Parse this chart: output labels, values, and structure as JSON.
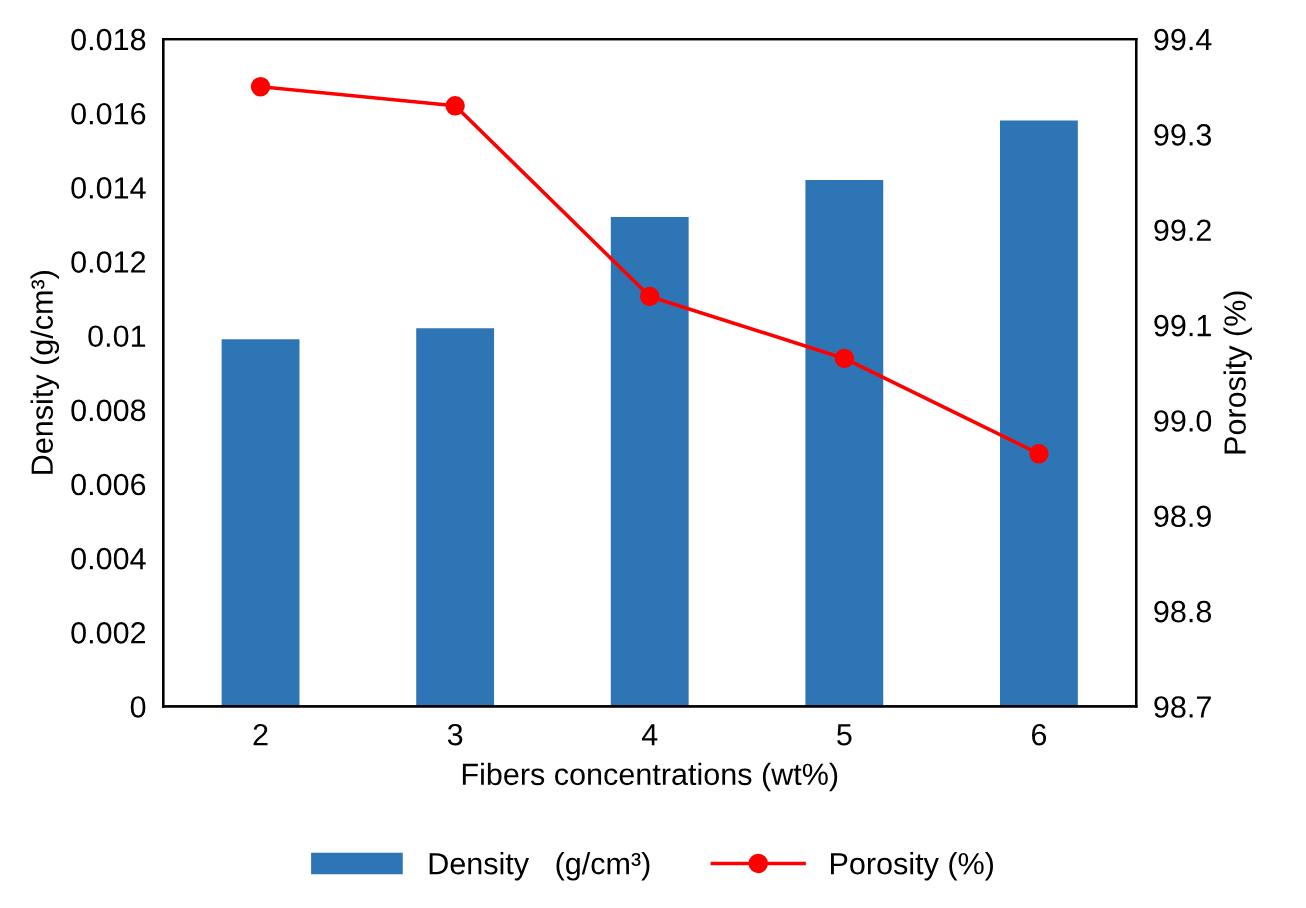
{
  "chart_data": {
    "type": "bar",
    "xlabel": "Fibers concentrations (wt%)",
    "ylabel": "Density (g/cm³)",
    "y2label": "Porosity (%)",
    "categories": [
      "2",
      "3",
      "4",
      "5",
      "6"
    ],
    "series": [
      {
        "name": "Density   (g/cm³)",
        "color": "#2e75b6",
        "values": [
          0.0099,
          0.0102,
          0.0132,
          0.0142,
          0.0158
        ]
      },
      {
        "name": "Porosity (%)",
        "type": "line",
        "axis": "y2",
        "color": "#ff0000",
        "marker": "circle",
        "values": [
          99.35,
          99.33,
          99.13,
          99.065,
          98.965
        ]
      }
    ],
    "ylim": [
      0,
      0.018
    ],
    "yticks": [
      0,
      0.002,
      0.004,
      0.006,
      0.008,
      0.01,
      0.012,
      0.014,
      0.016,
      0.018
    ],
    "y2lim": [
      98.7,
      99.4
    ],
    "y2ticks": [
      {
        "value": 98.7,
        "label": "98.7"
      },
      {
        "value": 98.8,
        "label": "98.8"
      },
      {
        "value": 98.9,
        "label": "98.9"
      },
      {
        "value": 99.0,
        "label": "99.0"
      },
      {
        "value": 99.1,
        "label": "99.1"
      },
      {
        "value": 99.2,
        "label": "99.2"
      },
      {
        "value": 99.3,
        "label": "99.3"
      },
      {
        "value": 99.4,
        "label": "99.4"
      }
    ],
    "grid": false,
    "legend": "bottom"
  }
}
